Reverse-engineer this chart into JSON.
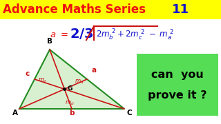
{
  "title_text": "Advance Maths Series",
  "title_num": "11",
  "title_bg": "#FFFF00",
  "title_red": "#EE1111",
  "title_blue": "#1111CC",
  "triangle_fill": "#D8F0D0",
  "triangle_stroke": "#228B22",
  "median_color": "#CC1111",
  "label_color": "#CC1111",
  "green_box_color": "#55DD55",
  "can_you_text": "can  you",
  "prove_text": "prove it ?",
  "bg_color": "#FFFFFF",
  "A": [
    28,
    158
  ],
  "B": [
    72,
    72
  ],
  "C": [
    180,
    158
  ]
}
